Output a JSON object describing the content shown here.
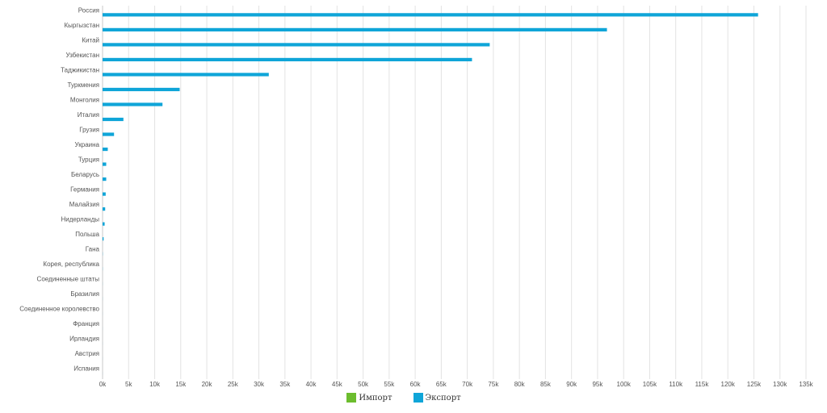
{
  "chart_data": {
    "type": "bar",
    "orientation": "horizontal",
    "categories": [
      "Россия",
      "Кыргызстан",
      "Китай",
      "Узбекистан",
      "Таджикистан",
      "Туркмения",
      "Монголия",
      "Италия",
      "Грузия",
      "Украина",
      "Турция",
      "Беларусь",
      "Германия",
      "Малайзия",
      "Нидерланды",
      "Польша",
      "Гана",
      "Корея, республика",
      "Соединенные штаты",
      "Бразилия",
      "Соединенное королевство",
      "Франция",
      "Ирландия",
      "Австрия",
      "Испания"
    ],
    "series": [
      {
        "name": "Импорт",
        "color": "#6cbd2e",
        "values": [
          0,
          0,
          0,
          0,
          0,
          0,
          0,
          0,
          0,
          0,
          0,
          0,
          0,
          0,
          0,
          0,
          0,
          0,
          0,
          0,
          0,
          0,
          0,
          0,
          0
        ]
      },
      {
        "name": "Экспорт",
        "color": "#0fa5d8",
        "values": [
          125800,
          96800,
          74300,
          70900,
          31900,
          14800,
          11500,
          4000,
          2200,
          1000,
          700,
          700,
          600,
          500,
          400,
          200,
          30,
          20,
          10,
          10,
          5,
          5,
          5,
          5,
          5
        ]
      }
    ],
    "xlim": [
      0,
      135000
    ],
    "x_ticks": [
      0,
      5000,
      10000,
      15000,
      20000,
      25000,
      30000,
      35000,
      40000,
      45000,
      50000,
      55000,
      60000,
      65000,
      70000,
      75000,
      80000,
      85000,
      90000,
      95000,
      100000,
      105000,
      110000,
      115000,
      120000,
      125000,
      130000,
      135000
    ],
    "x_tick_labels": [
      "0k",
      "5k",
      "10k",
      "15k",
      "20k",
      "25k",
      "30k",
      "35k",
      "40k",
      "45k",
      "50k",
      "55k",
      "60k",
      "65k",
      "70k",
      "75k",
      "80k",
      "85k",
      "90k",
      "95k",
      "100k",
      "105k",
      "110k",
      "115k",
      "120k",
      "125k",
      "130k",
      "135k"
    ],
    "grid": true,
    "legend_position": "bottom-center"
  }
}
